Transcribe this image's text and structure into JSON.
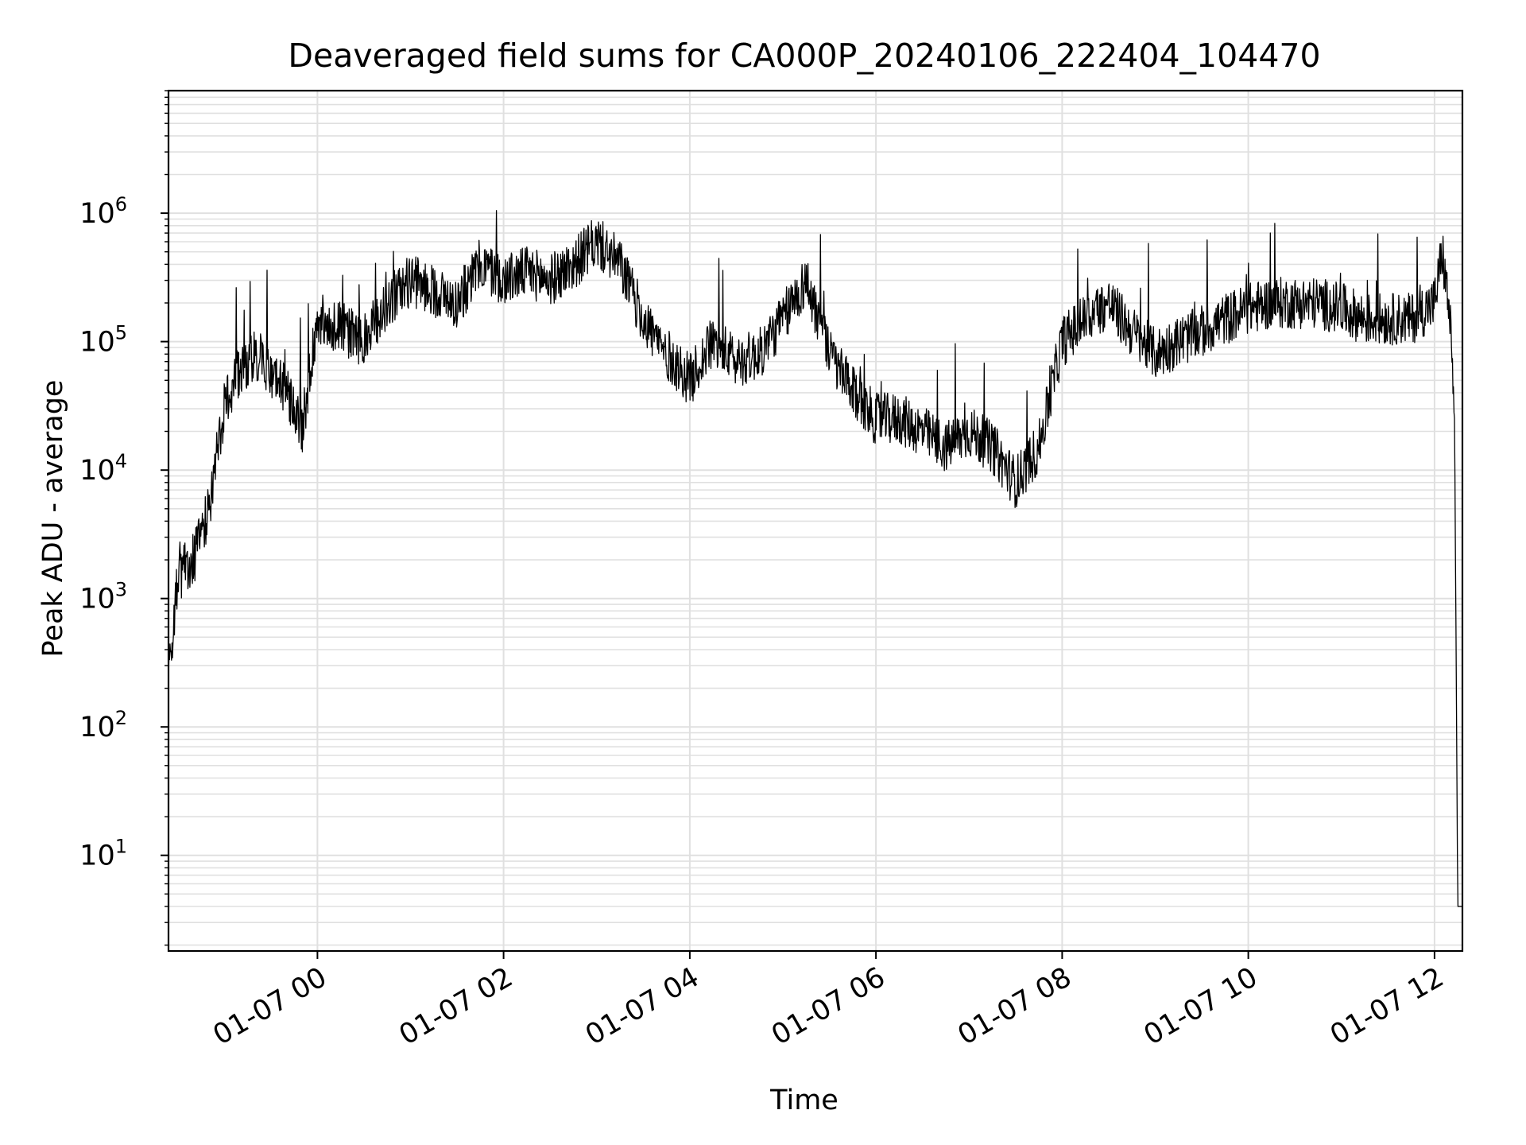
{
  "chart_data": {
    "type": "line",
    "title": "Deaveraged field sums for CA000P_20240106_222404_104470",
    "xlabel": "Time",
    "ylabel": "Peak ADU - average",
    "yscale": "log",
    "ylim": [
      1.8,
      9000000
    ],
    "xlim": [
      "01-06 22:24",
      "01-07 12:18"
    ],
    "grid": true,
    "line_color": "#000000",
    "grid_color": "#e0e0e0",
    "x_ticks": [
      {
        "at": "01-07 00:00",
        "label": "01-07 00"
      },
      {
        "at": "01-07 02:00",
        "label": "01-07 02"
      },
      {
        "at": "01-07 04:00",
        "label": "01-07 04"
      },
      {
        "at": "01-07 06:00",
        "label": "01-07 06"
      },
      {
        "at": "01-07 08:00",
        "label": "01-07 08"
      },
      {
        "at": "01-07 10:00",
        "label": "01-07 10"
      },
      {
        "at": "01-07 12:00",
        "label": "01-07 12"
      }
    ],
    "y_ticks": [
      {
        "value": 10,
        "base": "10",
        "exp": "1"
      },
      {
        "value": 100,
        "base": "10",
        "exp": "2"
      },
      {
        "value": 1000,
        "base": "10",
        "exp": "3"
      },
      {
        "value": 10000,
        "base": "10",
        "exp": "4"
      },
      {
        "value": 100000,
        "base": "10",
        "exp": "5"
      },
      {
        "value": 1000000,
        "base": "10",
        "exp": "6"
      }
    ],
    "series": [
      {
        "x": [
          "01-06 22:24",
          "01-06 22:30",
          "01-06 22:40",
          "01-06 22:50",
          "01-06 23:00",
          "01-06 23:10",
          "01-06 23:20",
          "01-06 23:30",
          "01-06 23:40",
          "01-06 23:50",
          "01-07 00:00",
          "01-07 00:15",
          "01-07 00:30",
          "01-07 00:45",
          "01-07 01:00",
          "01-07 01:15",
          "01-07 01:30",
          "01-07 01:45",
          "01-07 02:00",
          "01-07 02:15",
          "01-07 02:30",
          "01-07 02:45",
          "01-07 03:00",
          "01-07 03:15",
          "01-07 03:30",
          "01-07 03:45",
          "01-07 04:00",
          "01-07 04:15",
          "01-07 04:30",
          "01-07 04:45",
          "01-07 05:00",
          "01-07 05:15",
          "01-07 05:30",
          "01-07 05:45",
          "01-07 06:00",
          "01-07 06:15",
          "01-07 06:30",
          "01-07 06:45",
          "01-07 07:00",
          "01-07 07:15",
          "01-07 07:30",
          "01-07 07:45",
          "01-07 08:00",
          "01-07 08:15",
          "01-07 08:30",
          "01-07 08:45",
          "01-07 09:00",
          "01-07 09:15",
          "01-07 09:30",
          "01-07 09:45",
          "01-07 10:00",
          "01-07 10:15",
          "01-07 10:30",
          "01-07 10:45",
          "01-07 11:00",
          "01-07 11:15",
          "01-07 11:30",
          "01-07 11:45",
          "01-07 12:00",
          "01-07 12:05",
          "01-07 12:10",
          "01-07 12:13",
          "01-07 12:15",
          "01-07 12:18"
        ],
        "y": [
          250,
          1500,
          2000,
          5000,
          30000,
          60000,
          80000,
          60000,
          40000,
          20000,
          150000,
          130000,
          100000,
          200000,
          300000,
          250000,
          200000,
          400000,
          300000,
          350000,
          300000,
          400000,
          600000,
          400000,
          150000,
          80000,
          50000,
          100000,
          70000,
          80000,
          150000,
          300000,
          80000,
          40000,
          25000,
          25000,
          20000,
          15000,
          20000,
          15000,
          8000,
          15000,
          100000,
          150000,
          200000,
          120000,
          80000,
          100000,
          120000,
          150000,
          180000,
          200000,
          200000,
          200000,
          180000,
          150000,
          150000,
          150000,
          200000,
          500000,
          150000,
          20000,
          4,
          4
        ],
        "variation": 1.6
      }
    ]
  }
}
